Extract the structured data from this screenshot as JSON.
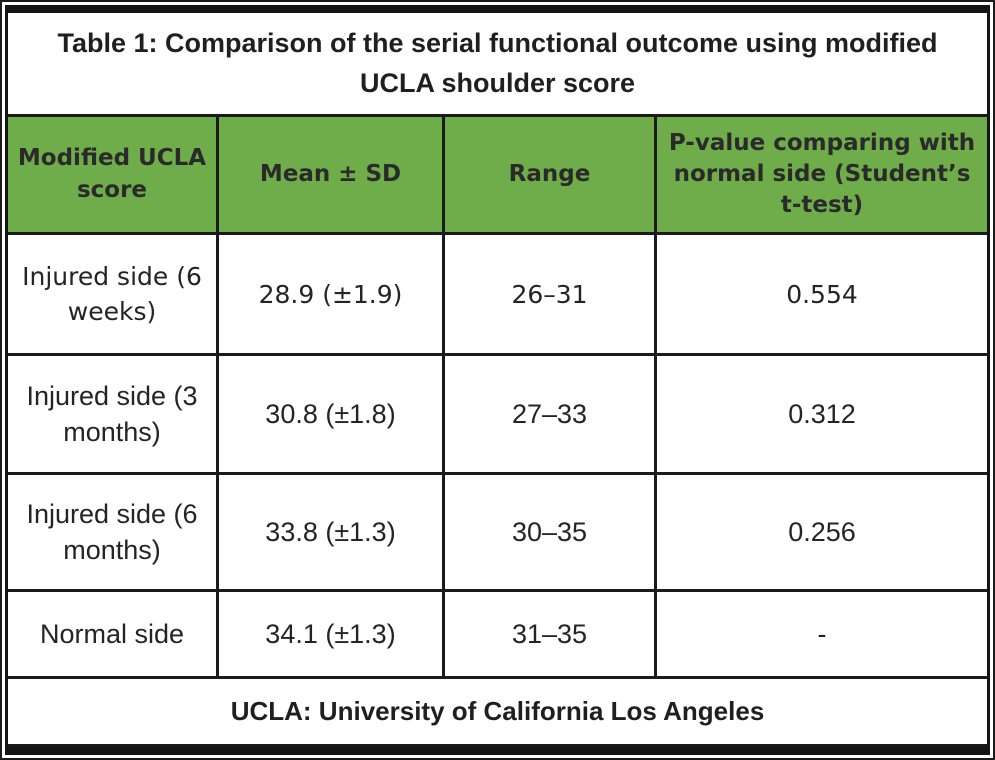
{
  "table": {
    "title": "Table 1: Comparison of the serial functional outcome using modified UCLA shoulder score",
    "columns": [
      "Modified UCLA score",
      "Mean ± SD",
      "Range",
      "P-value comparing with normal side (Student’s t-test)"
    ],
    "rows": [
      {
        "label": "Injured side (6 weeks)",
        "mean_sd": "28.9 (±1.9)",
        "range": "26–31",
        "p_value": "0.554"
      },
      {
        "label": "Injured side (3 months)",
        "mean_sd": "30.8 (±1.8)",
        "range": "27–33",
        "p_value": "0.312"
      },
      {
        "label": "Injured side (6 months)",
        "mean_sd": "33.8 (±1.3)",
        "range": "30–35",
        "p_value": "0.256"
      },
      {
        "label": "Normal side",
        "mean_sd": "34.1 (±1.3)",
        "range": "31–35",
        "p_value": "-"
      }
    ],
    "footnote": "UCLA: University of California Los Angeles",
    "colors": {
      "header_bg": "#6fad4b",
      "grid_border": "#1b1b1b",
      "text": "#242424"
    }
  }
}
